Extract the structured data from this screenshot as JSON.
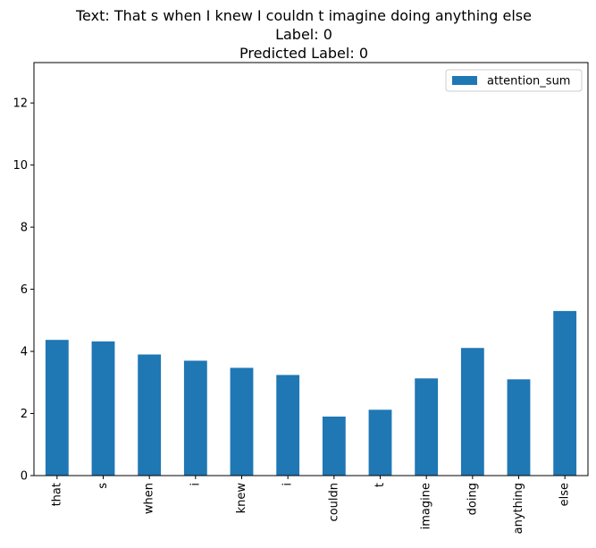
{
  "chart_data": {
    "type": "bar",
    "title_lines": [
      "Text: That s when I knew I couldn t imagine doing anything else",
      "Label: 0",
      "Predicted Label: 0"
    ],
    "xlabel": "",
    "ylabel": "",
    "categories": [
      "that",
      "s",
      "when",
      "i",
      "knew",
      "i",
      "couldn",
      "t",
      "imagine",
      "doing",
      "anything",
      "else"
    ],
    "series": [
      {
        "name": "attention_sum",
        "color": "#1f77b4",
        "values": [
          4.37,
          4.32,
          3.9,
          3.7,
          3.47,
          3.24,
          1.9,
          2.12,
          3.13,
          4.11,
          3.1,
          5.3
        ]
      }
    ],
    "ylim": [
      0,
      13.3
    ],
    "yticks": [
      0,
      2,
      4,
      6,
      8,
      10,
      12
    ],
    "grid": false,
    "legend_position": "top-right"
  }
}
